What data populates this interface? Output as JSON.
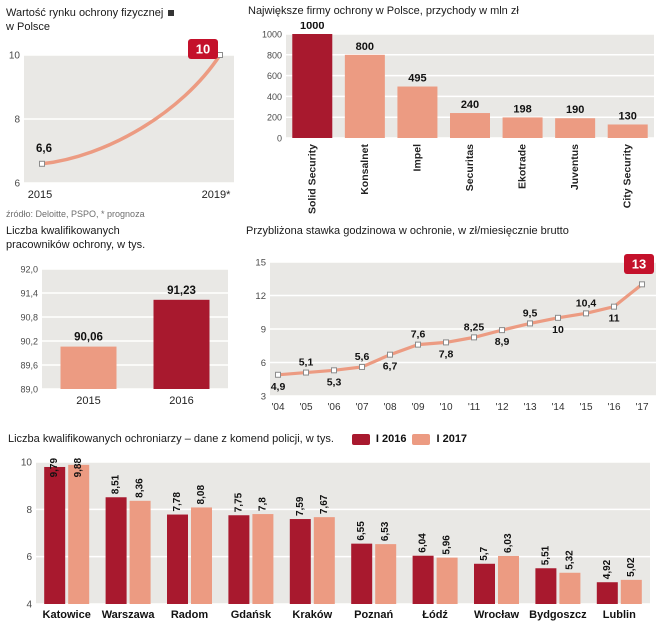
{
  "colors": {
    "dark_red": "#a8192e",
    "salmon": "#ec9b82",
    "badge_red": "#c4112b",
    "panel_bg": "#e9e8e5",
    "grid": "#ffffff"
  },
  "chart_data": [
    {
      "type": "line",
      "title_lines": [
        "Wartość rynku ochrony fizycznej",
        "w Polsce"
      ],
      "x": [
        "2015",
        "2019*"
      ],
      "values": [
        6.6,
        10
      ],
      "point_labels": [
        "6,6",
        "10"
      ],
      "badge": "10",
      "ylim": [
        6,
        10
      ],
      "yticks": [
        {
          "v": 6,
          "label": "6"
        },
        {
          "v": 8,
          "label": "8"
        },
        {
          "v": 10,
          "label": "10"
        }
      ],
      "source": "źródło: Deloitte, PSPO, * prognoza"
    },
    {
      "type": "bar",
      "title": "Największe firmy ochrony w Polsce, przychody w mln zł",
      "categories": [
        "Solid Security",
        "Konsalnet",
        "Impel",
        "Securitas",
        "Ekotrade",
        "Juventus",
        "City Security"
      ],
      "values": [
        1000,
        800,
        495,
        240,
        198,
        190,
        130
      ],
      "value_labels": [
        "1000",
        "800",
        "495",
        "240",
        "198",
        "190",
        "130"
      ],
      "highlight_index": 0,
      "ylim": [
        0,
        1000
      ],
      "yticks": [
        {
          "v": 0,
          "label": "0"
        },
        {
          "v": 200,
          "label": "200"
        },
        {
          "v": 400,
          "label": "400"
        },
        {
          "v": 600,
          "label": "600"
        },
        {
          "v": 800,
          "label": "800"
        },
        {
          "v": 1000,
          "label": "1000"
        }
      ]
    },
    {
      "type": "bar",
      "title_lines": [
        "Liczba kwalifikowanych",
        "pracowników ochrony, w tys."
      ],
      "categories": [
        "2015",
        "2016"
      ],
      "values": [
        90.06,
        91.23
      ],
      "value_labels": [
        "90,06",
        "91,23"
      ],
      "highlight_index": 1,
      "ylim": [
        89.0,
        92.0
      ],
      "yticks": [
        {
          "v": 89.0,
          "label": "89,0"
        },
        {
          "v": 89.6,
          "label": "89,6"
        },
        {
          "v": 90.2,
          "label": "90,2"
        },
        {
          "v": 90.8,
          "label": "90,8"
        },
        {
          "v": 91.4,
          "label": "91,4"
        },
        {
          "v": 92.0,
          "label": "92,0"
        }
      ]
    },
    {
      "type": "line",
      "title": "Przybliżona stawka godzinowa w ochronie, w zł/miesięcznie brutto",
      "x": [
        "'04",
        "'05",
        "'06",
        "'07",
        "'08",
        "'09",
        "'10",
        "'11",
        "'12",
        "'13",
        "'14",
        "'15",
        "'16",
        "'17"
      ],
      "values": [
        4.9,
        5.1,
        5.3,
        5.6,
        6.7,
        7.6,
        7.8,
        8.25,
        8.9,
        9.5,
        10,
        10.4,
        11,
        13
      ],
      "point_labels": [
        "4,9",
        "5,1",
        "5,3",
        "5,6",
        "6,7",
        "7,6",
        "7,8",
        "8,25",
        "8,9",
        "9,5",
        "10",
        "10,4",
        "11",
        "13"
      ],
      "badge": "13",
      "ylim": [
        3,
        15
      ],
      "yticks": [
        {
          "v": 3,
          "label": "3"
        },
        {
          "v": 6,
          "label": "6"
        },
        {
          "v": 9,
          "label": "9"
        },
        {
          "v": 12,
          "label": "12"
        },
        {
          "v": 15,
          "label": "15"
        }
      ]
    },
    {
      "type": "grouped-bar",
      "title": "Liczba kwalifikowanych ochroniarzy – dane z komend policji, w tys.",
      "categories": [
        "Katowice",
        "Warszawa",
        "Radom",
        "Gdańsk",
        "Kraków",
        "Poznań",
        "Łódź",
        "Wrocław",
        "Bydgoszcz",
        "Lublin"
      ],
      "series": [
        {
          "name": "I 2016",
          "color_key": "dark_red",
          "values": [
            9.79,
            8.51,
            7.78,
            7.75,
            7.59,
            6.55,
            6.04,
            5.7,
            5.51,
            4.92
          ],
          "value_labels": [
            "9,79",
            "8,51",
            "7,78",
            "7,75",
            "7,59",
            "6,55",
            "6,04",
            "5,7",
            "5,51",
            "4,92"
          ]
        },
        {
          "name": "I 2017",
          "color_key": "salmon",
          "values": [
            9.88,
            8.36,
            8.08,
            7.8,
            7.67,
            6.53,
            5.96,
            6.03,
            5.32,
            5.02
          ],
          "value_labels": [
            "9,88",
            "8,36",
            "8,08",
            "7,8",
            "7,67",
            "6,53",
            "5,96",
            "6,03",
            "5,32",
            "5,02"
          ]
        }
      ],
      "ylim": [
        4,
        10
      ],
      "yticks": [
        {
          "v": 4,
          "label": "4"
        },
        {
          "v": 6,
          "label": "6"
        },
        {
          "v": 8,
          "label": "8"
        },
        {
          "v": 10,
          "label": "10"
        }
      ]
    }
  ]
}
